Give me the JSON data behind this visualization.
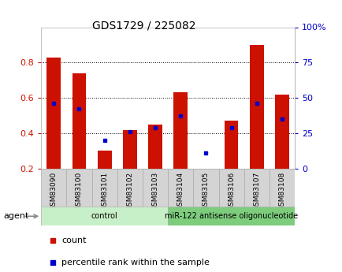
{
  "title": "GDS1729 / 225082",
  "samples": [
    "GSM83090",
    "GSM83100",
    "GSM83101",
    "GSM83102",
    "GSM83103",
    "GSM83104",
    "GSM83105",
    "GSM83106",
    "GSM83107",
    "GSM83108"
  ],
  "count_values": [
    0.83,
    0.74,
    0.3,
    0.42,
    0.45,
    0.63,
    0.2,
    0.47,
    0.9,
    0.62
  ],
  "percentile_values": [
    0.57,
    0.54,
    0.36,
    0.41,
    0.43,
    0.5,
    0.29,
    0.43,
    0.57,
    0.48
  ],
  "bar_bottom": 0.2,
  "count_color": "#cc1100",
  "percentile_color": "#0000cc",
  "ylim_left": [
    0.2,
    1.0
  ],
  "ylim_right": [
    0,
    100
  ],
  "yticks_left": [
    0.2,
    0.4,
    0.6,
    0.8
  ],
  "ytick_labels_left": [
    "0.2",
    "0.4",
    "0.6",
    "0.8"
  ],
  "yticks_right": [
    0,
    25,
    50,
    75,
    100
  ],
  "ytick_labels_right": [
    "0",
    "25",
    "50",
    "75",
    "100%"
  ],
  "groups": [
    {
      "label": "control",
      "start": 0,
      "end": 5,
      "color": "#c8f0c8"
    },
    {
      "label": "miR-122 antisense oligonucleotide",
      "start": 5,
      "end": 10,
      "color": "#7dcd7d"
    }
  ],
  "agent_label": "agent",
  "legend_count": "count",
  "legend_percentile": "percentile rank within the sample",
  "bar_width": 0.55,
  "grid_color": "#000000",
  "background_color": "#ffffff",
  "plot_bg_color": "#ffffff",
  "tick_label_color_left": "#cc1100",
  "tick_label_color_right": "#0000cc",
  "sample_box_color": "#d4d4d4",
  "spine_color": "#aaaaaa"
}
